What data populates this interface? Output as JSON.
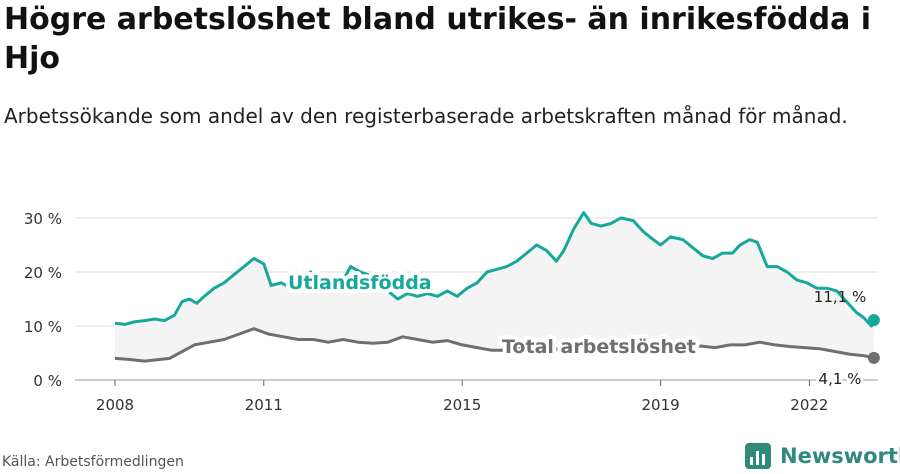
{
  "title": "Högre arbetslöshet bland utrikes- än inrikesfödda i Hjo",
  "subtitle": "Arbetssökande som andel av den registerbaserade arbetskraften månad för månad.",
  "source": "Källa: Arbetsförmedlingen",
  "brand": "Newsworthy",
  "colors": {
    "foreign": "#16a89a",
    "total": "#6f6f6f",
    "area": "#f4f4f4",
    "grid": "#dddddd",
    "brand": "#2f8a79"
  },
  "chart_data": {
    "type": "line",
    "ylim": [
      0,
      30
    ],
    "yticks": [
      0,
      10,
      20,
      30
    ],
    "ytick_labels": [
      "0 %",
      "10 %",
      "20 %",
      "30 %"
    ],
    "xlim": [
      2008,
      2023.3
    ],
    "xticks": [
      2008,
      2011,
      2015,
      2019,
      2022
    ],
    "xtick_labels": [
      "2008",
      "2011",
      "2015",
      "2019",
      "2022"
    ],
    "grid": true,
    "series": [
      {
        "name": "Utlandsfödda",
        "end_label": "11,1 %",
        "points": [
          [
            2008.0,
            10.5
          ],
          [
            2008.2,
            10.3
          ],
          [
            2008.4,
            10.8
          ],
          [
            2008.6,
            11.0
          ],
          [
            2008.8,
            11.3
          ],
          [
            2009.0,
            11.0
          ],
          [
            2009.2,
            12.0
          ],
          [
            2009.35,
            14.5
          ],
          [
            2009.5,
            15.0
          ],
          [
            2009.65,
            14.2
          ],
          [
            2009.8,
            15.5
          ],
          [
            2010.0,
            17.0
          ],
          [
            2010.2,
            18.0
          ],
          [
            2010.4,
            19.5
          ],
          [
            2010.6,
            21.0
          ],
          [
            2010.8,
            22.5
          ],
          [
            2011.0,
            21.5
          ],
          [
            2011.15,
            17.5
          ],
          [
            2011.35,
            18.0
          ],
          [
            2011.55,
            17.0
          ],
          [
            2011.75,
            19.0
          ],
          [
            2011.95,
            20.0
          ],
          [
            2012.1,
            17.0
          ],
          [
            2012.25,
            19.0
          ],
          [
            2012.4,
            17.0
          ],
          [
            2012.6,
            18.5
          ],
          [
            2012.75,
            21.0
          ],
          [
            2012.95,
            20.0
          ],
          [
            2013.1,
            19.5
          ],
          [
            2013.3,
            18.0
          ],
          [
            2013.5,
            16.5
          ],
          [
            2013.7,
            15.0
          ],
          [
            2013.9,
            16.0
          ],
          [
            2014.1,
            15.5
          ],
          [
            2014.3,
            16.0
          ],
          [
            2014.5,
            15.5
          ],
          [
            2014.7,
            16.5
          ],
          [
            2014.9,
            15.5
          ],
          [
            2015.1,
            17.0
          ],
          [
            2015.3,
            18.0
          ],
          [
            2015.5,
            20.0
          ],
          [
            2015.7,
            20.5
          ],
          [
            2015.9,
            21.0
          ],
          [
            2016.1,
            22.0
          ],
          [
            2016.3,
            23.5
          ],
          [
            2016.5,
            25.0
          ],
          [
            2016.7,
            24.0
          ],
          [
            2016.9,
            22.0
          ],
          [
            2017.05,
            24.0
          ],
          [
            2017.25,
            28.0
          ],
          [
            2017.45,
            31.0
          ],
          [
            2017.6,
            29.0
          ],
          [
            2017.8,
            28.5
          ],
          [
            2018.0,
            29.0
          ],
          [
            2018.2,
            30.0
          ],
          [
            2018.45,
            29.5
          ],
          [
            2018.65,
            27.5
          ],
          [
            2018.85,
            26.0
          ],
          [
            2019.0,
            25.0
          ],
          [
            2019.2,
            26.5
          ],
          [
            2019.45,
            26.0
          ],
          [
            2019.65,
            24.5
          ],
          [
            2019.85,
            23.0
          ],
          [
            2020.05,
            22.5
          ],
          [
            2020.25,
            23.5
          ],
          [
            2020.45,
            23.5
          ],
          [
            2020.6,
            25.0
          ],
          [
            2020.8,
            26.0
          ],
          [
            2020.95,
            25.5
          ],
          [
            2021.15,
            21.0
          ],
          [
            2021.35,
            21.0
          ],
          [
            2021.55,
            20.0
          ],
          [
            2021.75,
            18.5
          ],
          [
            2021.95,
            18.0
          ],
          [
            2022.15,
            17.0
          ],
          [
            2022.35,
            17.0
          ],
          [
            2022.55,
            16.5
          ],
          [
            2022.75,
            14.5
          ],
          [
            2022.95,
            12.5
          ],
          [
            2023.1,
            11.5
          ],
          [
            2023.25,
            10.0
          ],
          [
            2023.3,
            11.1
          ]
        ]
      },
      {
        "name": "Total arbetslöshet",
        "end_label": "4,1 %",
        "points": [
          [
            2008.0,
            4.0
          ],
          [
            2008.3,
            3.8
          ],
          [
            2008.6,
            3.5
          ],
          [
            2008.9,
            3.8
          ],
          [
            2009.1,
            4.0
          ],
          [
            2009.3,
            5.0
          ],
          [
            2009.6,
            6.5
          ],
          [
            2009.9,
            7.0
          ],
          [
            2010.2,
            7.5
          ],
          [
            2010.5,
            8.5
          ],
          [
            2010.8,
            9.5
          ],
          [
            2011.1,
            8.5
          ],
          [
            2011.4,
            8.0
          ],
          [
            2011.7,
            7.5
          ],
          [
            2012.0,
            7.5
          ],
          [
            2012.3,
            7.0
          ],
          [
            2012.6,
            7.5
          ],
          [
            2012.9,
            7.0
          ],
          [
            2013.2,
            6.8
          ],
          [
            2013.5,
            7.0
          ],
          [
            2013.8,
            8.0
          ],
          [
            2014.1,
            7.5
          ],
          [
            2014.4,
            7.0
          ],
          [
            2014.7,
            7.3
          ],
          [
            2015.0,
            6.5
          ],
          [
            2015.3,
            6.0
          ],
          [
            2015.6,
            5.5
          ],
          [
            2015.9,
            5.5
          ],
          [
            2016.2,
            5.8
          ],
          [
            2016.5,
            5.5
          ],
          [
            2016.8,
            5.8
          ],
          [
            2017.1,
            5.5
          ],
          [
            2017.4,
            5.8
          ],
          [
            2017.7,
            5.5
          ],
          [
            2018.0,
            5.5
          ],
          [
            2018.3,
            5.3
          ],
          [
            2018.6,
            5.3
          ],
          [
            2018.9,
            5.5
          ],
          [
            2019.2,
            5.8
          ],
          [
            2019.5,
            6.0
          ],
          [
            2019.8,
            6.3
          ],
          [
            2020.1,
            6.0
          ],
          [
            2020.4,
            6.5
          ],
          [
            2020.7,
            6.5
          ],
          [
            2021.0,
            7.0
          ],
          [
            2021.3,
            6.5
          ],
          [
            2021.6,
            6.2
          ],
          [
            2021.9,
            6.0
          ],
          [
            2022.2,
            5.8
          ],
          [
            2022.5,
            5.3
          ],
          [
            2022.8,
            4.8
          ],
          [
            2023.1,
            4.5
          ],
          [
            2023.3,
            4.1
          ]
        ]
      }
    ]
  }
}
